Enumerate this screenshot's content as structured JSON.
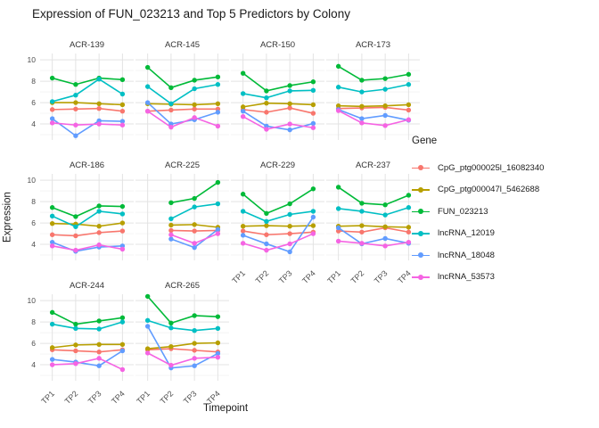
{
  "title": "Expression of FUN_023213 and Top 5 Predictors by Colony",
  "chart_data": {
    "type": "line",
    "title": "Expression of FUN_023213 and Top 5 Predictors by Colony",
    "xlabel": "Timepoint",
    "ylabel": "Expression",
    "legend_title": "Gene",
    "legend_position": "right",
    "grid": true,
    "x_categories": [
      "TP1",
      "TP2",
      "TP3",
      "TP4"
    ],
    "yticks": [
      4,
      6,
      8,
      10
    ],
    "yticks_minor": [
      3,
      5,
      7,
      9
    ],
    "ylim": [
      2.5,
      10.6
    ],
    "series": [
      {
        "name": "CpG_ptg000025l_16082340",
        "color": "#F8766D"
      },
      {
        "name": "CpG_ptg000047l_5462688",
        "color": "#B79F00"
      },
      {
        "name": "FUN_023213",
        "color": "#00BA38"
      },
      {
        "name": "lncRNA_12019",
        "color": "#00BFC4"
      },
      {
        "name": "lncRNA_18048",
        "color": "#619CFF"
      },
      {
        "name": "lncRNA_53573",
        "color": "#F564E3"
      }
    ],
    "facets": [
      {
        "label": "ACR-139",
        "show_y_ticks": true,
        "show_x_ticks": false,
        "values": {
          "CpG_ptg000025l_16082340": [
            5.35,
            5.4,
            5.45,
            5.2
          ],
          "CpG_ptg000047l_5462688": [
            6.0,
            6.0,
            5.9,
            5.8
          ],
          "FUN_023213": [
            8.3,
            7.7,
            8.3,
            8.15
          ],
          "lncRNA_12019": [
            6.1,
            6.7,
            8.2,
            6.8
          ],
          "lncRNA_18048": [
            4.5,
            2.9,
            4.3,
            4.25
          ],
          "lncRNA_53573": [
            4.1,
            3.9,
            4.0,
            3.9
          ]
        }
      },
      {
        "label": "ACR-145",
        "show_y_ticks": false,
        "show_x_ticks": false,
        "values": {
          "CpG_ptg000025l_16082340": [
            5.2,
            5.3,
            5.4,
            5.4
          ],
          "CpG_ptg000047l_5462688": [
            5.9,
            5.85,
            5.8,
            5.9
          ],
          "FUN_023213": [
            9.3,
            7.4,
            8.1,
            8.4
          ],
          "lncRNA_12019": [
            7.5,
            5.9,
            7.3,
            7.7
          ],
          "lncRNA_18048": [
            6.0,
            4.0,
            4.4,
            5.1
          ],
          "lncRNA_53573": [
            5.2,
            3.7,
            4.6,
            3.8
          ]
        }
      },
      {
        "label": "ACR-150",
        "show_y_ticks": false,
        "show_x_ticks": false,
        "values": {
          "CpG_ptg000025l_16082340": [
            5.35,
            5.1,
            5.5,
            5.0
          ],
          "CpG_ptg000047l_5462688": [
            5.6,
            5.95,
            5.9,
            5.8
          ],
          "FUN_023213": [
            8.75,
            7.1,
            7.6,
            7.95
          ],
          "lncRNA_12019": [
            6.85,
            6.45,
            7.1,
            7.15
          ],
          "lncRNA_18048": [
            5.2,
            3.8,
            3.45,
            4.05
          ],
          "lncRNA_53573": [
            4.7,
            3.5,
            4.0,
            3.65
          ]
        }
      },
      {
        "label": "ACR-173",
        "show_y_ticks": false,
        "show_x_ticks": false,
        "values": {
          "CpG_ptg000025l_16082340": [
            5.45,
            5.5,
            5.55,
            5.3
          ],
          "CpG_ptg000047l_5462688": [
            5.7,
            5.65,
            5.7,
            5.8
          ],
          "FUN_023213": [
            9.4,
            8.1,
            8.25,
            8.65
          ],
          "lncRNA_12019": [
            7.45,
            7.0,
            7.25,
            7.7
          ],
          "lncRNA_18048": [
            5.35,
            4.5,
            4.8,
            4.35
          ],
          "lncRNA_53573": [
            5.25,
            4.1,
            3.85,
            4.4
          ]
        }
      },
      {
        "label": "ACR-186",
        "show_y_ticks": true,
        "show_x_ticks": false,
        "values": {
          "CpG_ptg000025l_16082340": [
            4.9,
            4.8,
            5.1,
            5.25
          ],
          "CpG_ptg000047l_5462688": [
            5.95,
            5.9,
            5.7,
            6.0
          ],
          "FUN_023213": [
            7.45,
            6.6,
            7.6,
            7.55
          ],
          "lncRNA_12019": [
            6.65,
            5.65,
            7.1,
            6.85
          ],
          "lncRNA_18048": [
            4.2,
            3.35,
            3.75,
            3.85
          ],
          "lncRNA_53573": [
            3.85,
            3.45,
            3.95,
            3.55
          ]
        }
      },
      {
        "label": "ACR-225",
        "show_y_ticks": false,
        "show_x_ticks": false,
        "values": {
          "CpG_ptg000025l_16082340": [
            null,
            5.3,
            5.25,
            5.3
          ],
          "CpG_ptg000047l_5462688": [
            null,
            5.8,
            5.85,
            5.6
          ],
          "FUN_023213": [
            null,
            7.9,
            8.3,
            9.8
          ],
          "lncRNA_12019": [
            null,
            6.4,
            7.5,
            7.8
          ],
          "lncRNA_18048": [
            null,
            4.5,
            3.7,
            5.4
          ],
          "lncRNA_53573": [
            null,
            4.9,
            4.1,
            5.0
          ]
        }
      },
      {
        "label": "ACR-229",
        "show_y_ticks": false,
        "show_x_ticks": true,
        "values": {
          "CpG_ptg000025l_16082340": [
            5.25,
            4.9,
            5.0,
            5.15
          ],
          "CpG_ptg000047l_5462688": [
            5.7,
            5.75,
            5.7,
            5.75
          ],
          "FUN_023213": [
            8.7,
            6.9,
            7.8,
            9.2
          ],
          "lncRNA_12019": [
            7.1,
            6.15,
            6.8,
            7.1
          ],
          "lncRNA_18048": [
            4.85,
            4.05,
            3.3,
            6.55
          ],
          "lncRNA_53573": [
            4.1,
            3.45,
            4.05,
            5.0
          ]
        }
      },
      {
        "label": "ACR-237",
        "show_y_ticks": false,
        "show_x_ticks": true,
        "values": {
          "CpG_ptg000025l_16082340": [
            5.25,
            5.15,
            5.55,
            5.15
          ],
          "CpG_ptg000047l_5462688": [
            5.7,
            5.75,
            5.65,
            5.6
          ],
          "FUN_023213": [
            9.35,
            7.85,
            7.7,
            8.6
          ],
          "lncRNA_12019": [
            7.35,
            7.1,
            6.75,
            7.45
          ],
          "lncRNA_18048": [
            5.55,
            4.05,
            4.55,
            4.1
          ],
          "lncRNA_53573": [
            4.3,
            4.1,
            3.85,
            4.2
          ]
        }
      },
      {
        "label": "ACR-244",
        "show_y_ticks": true,
        "show_x_ticks": true,
        "values": {
          "CpG_ptg000025l_16082340": [
            5.4,
            5.3,
            5.2,
            5.4
          ],
          "CpG_ptg000047l_5462688": [
            5.6,
            5.85,
            5.9,
            5.9
          ],
          "FUN_023213": [
            8.9,
            7.8,
            8.1,
            8.4
          ],
          "lncRNA_12019": [
            7.8,
            7.4,
            7.35,
            8.0
          ],
          "lncRNA_18048": [
            4.5,
            4.25,
            3.9,
            5.3
          ],
          "lncRNA_53573": [
            4.0,
            4.1,
            4.6,
            3.55
          ]
        }
      },
      {
        "label": "ACR-265",
        "show_y_ticks": false,
        "show_x_ticks": true,
        "values": {
          "CpG_ptg000025l_16082340": [
            5.4,
            5.5,
            5.35,
            5.2
          ],
          "CpG_ptg000047l_5462688": [
            5.5,
            5.7,
            6.0,
            6.05
          ],
          "FUN_023213": [
            10.4,
            7.9,
            8.6,
            8.5
          ],
          "lncRNA_12019": [
            8.15,
            7.45,
            7.2,
            7.4
          ],
          "lncRNA_18048": [
            7.6,
            3.7,
            3.9,
            5.05
          ],
          "lncRNA_53573": [
            5.1,
            3.95,
            4.6,
            4.7
          ]
        }
      }
    ],
    "style": {
      "grid_major_color": "#e3e3e3",
      "grid_minor_color": "#f0f0f0",
      "axis_text_color": "#4d4d4d",
      "strip_text_color": "#333333",
      "title_color": "#1a1a1a"
    }
  }
}
